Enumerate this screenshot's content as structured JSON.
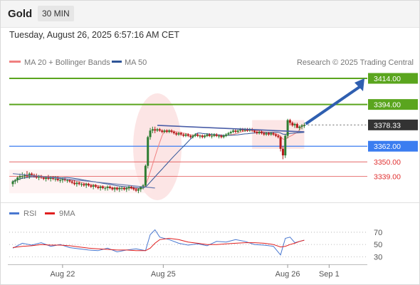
{
  "header": {
    "symbol": "Gold",
    "timeframe": "30 MIN"
  },
  "timestamp": "Tuesday, August 26, 2025 6:57:16 AM CET",
  "legend": {
    "ma20_label": "MA 20 + Bollinger Bands",
    "ma50_label": "MA 50"
  },
  "credit": "Research © 2025 Trading Central",
  "colors": {
    "support_resistance": "#5aa51e",
    "pivot": "#3b7df0",
    "minor": "#e05050",
    "ma20": "#f08080",
    "ma50": "#2f5597",
    "current": "#333333"
  },
  "chart_data": [
    {
      "type": "candlestick",
      "ylim": [
        3325,
        3420
      ],
      "levels": [
        {
          "label": "3414.00",
          "value": 3414.0,
          "kind": "resistance"
        },
        {
          "label": "3394.00",
          "value": 3394.0,
          "kind": "resistance"
        },
        {
          "label": "3378.33",
          "value": 3378.33,
          "kind": "last"
        },
        {
          "label": "3362.00",
          "value": 3362.0,
          "kind": "pivot"
        },
        {
          "label": "3350.00",
          "value": 3350.0,
          "kind": "support"
        },
        {
          "label": "3339.00",
          "value": 3339.0,
          "kind": "support"
        }
      ],
      "x_ticks": [
        "Aug 22",
        "Aug 25",
        "Aug 26",
        "Sep 1"
      ],
      "x_tick_pos": [
        0.2,
        1.05,
        2.1,
        2.45
      ],
      "x_range": [
        -0.25,
        2.55
      ],
      "ohlc": {
        "t": [
          -0.22,
          -0.2,
          -0.18,
          -0.16,
          -0.14,
          -0.12,
          -0.1,
          -0.08,
          -0.06,
          -0.04,
          -0.02,
          0.0,
          0.02,
          0.04,
          0.06,
          0.08,
          0.1,
          0.12,
          0.14,
          0.16,
          0.18,
          0.2,
          0.22,
          0.24,
          0.26,
          0.28,
          0.3,
          0.32,
          0.34,
          0.36,
          0.38,
          0.4,
          0.42,
          0.44,
          0.46,
          0.48,
          0.5,
          0.52,
          0.54,
          0.56,
          0.58,
          0.6,
          0.62,
          0.64,
          0.66,
          0.68,
          0.7,
          0.72,
          0.74,
          0.76,
          0.78,
          0.8,
          0.82,
          0.84,
          0.86,
          0.88,
          0.9,
          0.92,
          0.94,
          0.96,
          0.98
        ],
        "open": [
          3333,
          3335,
          3336,
          3338,
          3339,
          3339,
          3340,
          3339,
          3341,
          3340,
          3339,
          3338,
          3339,
          3338,
          3337,
          3338,
          3337,
          3338,
          3337,
          3337,
          3336,
          3336,
          3337,
          3336,
          3336,
          3335,
          3334,
          3333,
          3334,
          3333,
          3333,
          3332,
          3333,
          3332,
          3331,
          3332,
          3331,
          3330,
          3331,
          3330,
          3330,
          3331,
          3330,
          3329,
          3330,
          3329,
          3330,
          3330,
          3329,
          3330,
          3331,
          3330,
          3329,
          3328,
          3329,
          3331,
          3332,
          3347,
          3369,
          3374,
          3375
        ],
        "high": [
          3336,
          3337,
          3339,
          3341,
          3342,
          3341,
          3343,
          3342,
          3342,
          3341,
          3341,
          3340,
          3340,
          3339,
          3339,
          3340,
          3339,
          3339,
          3339,
          3339,
          3338,
          3338,
          3338,
          3337,
          3337,
          3336,
          3336,
          3335,
          3335,
          3334,
          3334,
          3334,
          3334,
          3333,
          3333,
          3333,
          3332,
          3332,
          3332,
          3331,
          3332,
          3332,
          3331,
          3331,
          3331,
          3331,
          3331,
          3331,
          3331,
          3332,
          3332,
          3331,
          3330,
          3330,
          3331,
          3333,
          3348,
          3370,
          3376,
          3377,
          3377
        ],
        "low": [
          3331,
          3333,
          3334,
          3336,
          3337,
          3337,
          3338,
          3337,
          3339,
          3338,
          3337,
          3336,
          3337,
          3336,
          3335,
          3336,
          3335,
          3336,
          3335,
          3335,
          3334,
          3334,
          3335,
          3334,
          3334,
          3333,
          3332,
          3331,
          3332,
          3331,
          3331,
          3330,
          3331,
          3330,
          3329,
          3330,
          3329,
          3328,
          3329,
          3328,
          3328,
          3329,
          3328,
          3327,
          3328,
          3327,
          3328,
          3328,
          3327,
          3328,
          3329,
          3328,
          3327,
          3326,
          3327,
          3329,
          3331,
          3345,
          3367,
          3372,
          3372
        ],
        "close": [
          3335,
          3336,
          3338,
          3339,
          3339,
          3340,
          3339,
          3341,
          3340,
          3339,
          3338,
          3339,
          3338,
          3337,
          3338,
          3337,
          3338,
          3337,
          3337,
          3336,
          3336,
          3337,
          3336,
          3336,
          3335,
          3334,
          3333,
          3334,
          3333,
          3333,
          3332,
          3333,
          3332,
          3331,
          3332,
          3331,
          3330,
          3331,
          3330,
          3330,
          3331,
          3330,
          3329,
          3330,
          3329,
          3330,
          3330,
          3329,
          3330,
          3331,
          3330,
          3329,
          3328,
          3329,
          3331,
          3332,
          3347,
          3369,
          3374,
          3375,
          3374
        ]
      },
      "ohlc2": {
        "t": [
          1.0,
          1.02,
          1.04,
          1.06,
          1.08,
          1.1,
          1.12,
          1.14,
          1.16,
          1.18,
          1.2,
          1.22,
          1.24,
          1.26,
          1.28,
          1.3,
          1.32,
          1.34,
          1.36,
          1.38,
          1.4,
          1.42,
          1.44,
          1.46,
          1.48,
          1.5,
          1.52,
          1.54,
          1.56,
          1.58,
          1.6,
          1.62,
          1.64,
          1.66,
          1.68,
          1.7,
          1.72,
          1.74,
          1.76,
          1.78,
          1.8,
          1.82,
          1.84,
          1.86,
          1.88,
          1.9,
          1.92,
          1.94,
          1.96,
          1.98,
          2.0,
          2.02,
          2.04,
          2.06,
          2.08,
          2.1,
          2.12,
          2.14,
          2.16,
          2.18,
          2.2,
          2.22,
          2.24
        ],
        "open": [
          3374,
          3375,
          3374,
          3373,
          3374,
          3373,
          3374,
          3373,
          3372,
          3371,
          3372,
          3371,
          3370,
          3371,
          3370,
          3369,
          3370,
          3371,
          3370,
          3370,
          3369,
          3370,
          3371,
          3370,
          3370,
          3371,
          3370,
          3370,
          3369,
          3370,
          3371,
          3372,
          3373,
          3374,
          3373,
          3374,
          3375,
          3374,
          3375,
          3374,
          3375,
          3374,
          3373,
          3372,
          3373,
          3372,
          3371,
          3372,
          3371,
          3372,
          3371,
          3370,
          3369,
          3360,
          3355,
          3370,
          3382,
          3380,
          3378,
          3379,
          3376,
          3377,
          3378
        ],
        "high": [
          3376,
          3376,
          3375,
          3375,
          3375,
          3375,
          3375,
          3374,
          3373,
          3373,
          3373,
          3372,
          3372,
          3372,
          3371,
          3371,
          3372,
          3372,
          3371,
          3371,
          3371,
          3372,
          3372,
          3372,
          3372,
          3372,
          3371,
          3371,
          3371,
          3372,
          3373,
          3374,
          3375,
          3375,
          3375,
          3376,
          3376,
          3376,
          3376,
          3376,
          3376,
          3375,
          3374,
          3374,
          3374,
          3373,
          3373,
          3373,
          3373,
          3373,
          3372,
          3371,
          3370,
          3362,
          3371,
          3383,
          3383,
          3381,
          3380,
          3380,
          3378,
          3379,
          3380
        ],
        "low": [
          3373,
          3373,
          3372,
          3372,
          3372,
          3372,
          3372,
          3371,
          3370,
          3370,
          3370,
          3369,
          3369,
          3369,
          3368,
          3368,
          3369,
          3369,
          3368,
          3368,
          3368,
          3369,
          3369,
          3368,
          3369,
          3369,
          3368,
          3368,
          3368,
          3369,
          3370,
          3371,
          3372,
          3372,
          3372,
          3373,
          3373,
          3373,
          3373,
          3373,
          3373,
          3372,
          3371,
          3371,
          3371,
          3370,
          3370,
          3370,
          3370,
          3370,
          3369,
          3368,
          3358,
          3352,
          3353,
          3368,
          3378,
          3377,
          3376,
          3376,
          3374,
          3375,
          3376
        ],
        "close": [
          3375,
          3374,
          3373,
          3374,
          3373,
          3374,
          3373,
          3372,
          3371,
          3372,
          3371,
          3370,
          3371,
          3370,
          3369,
          3370,
          3371,
          3370,
          3370,
          3369,
          3370,
          3371,
          3370,
          3370,
          3371,
          3370,
          3370,
          3369,
          3370,
          3371,
          3372,
          3373,
          3374,
          3373,
          3374,
          3375,
          3374,
          3375,
          3374,
          3375,
          3374,
          3373,
          3372,
          3373,
          3372,
          3371,
          3372,
          3371,
          3372,
          3371,
          3370,
          3369,
          3360,
          3355,
          3370,
          3382,
          3380,
          3378,
          3379,
          3376,
          3377,
          3378,
          3378
        ]
      },
      "rsi": {
        "label": "RSI",
        "ma_label": "9MA",
        "ylim": [
          20,
          85
        ],
        "ticks": [
          70,
          50,
          30
        ],
        "t": [
          -0.22,
          -0.14,
          -0.06,
          0.02,
          0.1,
          0.18,
          0.26,
          0.34,
          0.42,
          0.5,
          0.58,
          0.66,
          0.74,
          0.82,
          0.9,
          0.94,
          0.98,
          1.02,
          1.1,
          1.18,
          1.26,
          1.34,
          1.42,
          1.5,
          1.58,
          1.66,
          1.74,
          1.82,
          1.9,
          1.98,
          2.04,
          2.08,
          2.12,
          2.16,
          2.2,
          2.24
        ],
        "values": [
          44,
          52,
          49,
          53,
          47,
          50,
          45,
          43,
          41,
          40,
          44,
          38,
          41,
          43,
          40,
          66,
          74,
          62,
          58,
          52,
          49,
          51,
          48,
          55,
          54,
          58,
          55,
          50,
          49,
          47,
          33,
          60,
          62,
          53,
          55,
          57
        ],
        "ma": [
          45,
          47,
          48,
          50,
          49,
          49,
          48,
          46,
          44,
          43,
          42,
          41,
          41,
          40,
          40,
          44,
          52,
          58,
          60,
          58,
          54,
          52,
          50,
          50,
          51,
          52,
          53,
          53,
          52,
          50,
          46,
          47,
          50,
          52,
          55,
          57
        ]
      }
    }
  ]
}
